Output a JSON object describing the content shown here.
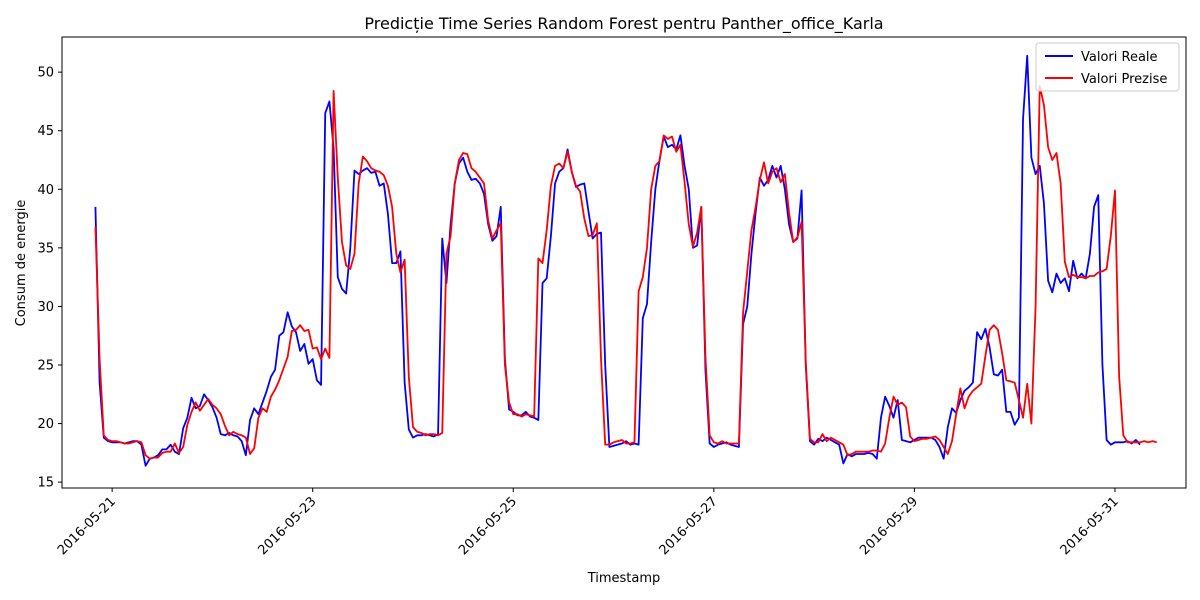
{
  "chart_data": {
    "type": "line",
    "title": "Predicție Time Series Random Forest pentru Panther_office_Karla",
    "xlabel": "Timestamp",
    "ylabel": "Consum de energie",
    "xlim": [
      "2016-05-20T12:00",
      "2016-05-31T17:00"
    ],
    "ylim": [
      14.5,
      53
    ],
    "x_ticks": [
      "2016-05-21",
      "2016-05-23",
      "2016-05-25",
      "2016-05-27",
      "2016-05-29",
      "2016-05-31"
    ],
    "y_ticks": [
      15,
      20,
      25,
      30,
      35,
      40,
      45,
      50
    ],
    "legend_position": "top-right",
    "x_start": "2016-05-20T20:00",
    "x_step_hours": 1,
    "series": [
      {
        "name": "Valori Reale",
        "color": "#0000ff",
        "values": [
          38.5,
          23.5,
          18.8,
          18.5,
          18.4,
          18.4,
          18.4,
          18.3,
          18.4,
          18.5,
          18.5,
          18.2,
          16.4,
          17.0,
          17.1,
          17.3,
          17.8,
          17.8,
          18.2,
          17.6,
          17.4,
          19.6,
          20.5,
          22.2,
          21.3,
          21.5,
          22.5,
          22.0,
          21.4,
          20.5,
          19.1,
          19.0,
          19.2,
          19.0,
          18.9,
          18.5,
          17.3,
          20.3,
          21.3,
          20.8,
          21.8,
          22.8,
          24.0,
          24.6,
          27.5,
          27.8,
          29.5,
          28.3,
          27.8,
          26.2,
          26.8,
          25.1,
          25.5,
          23.7,
          23.3,
          46.5,
          47.5,
          43.5,
          32.5,
          31.5,
          31.1,
          35.0,
          41.6,
          41.3,
          41.6,
          41.8,
          41.4,
          41.5,
          40.3,
          40.5,
          37.9,
          33.7,
          33.7,
          34.7,
          23.5,
          19.5,
          18.8,
          19.0,
          19.0,
          19.1,
          19.0,
          18.9,
          19.1,
          35.8,
          32.0,
          37.0,
          40.5,
          42.2,
          42.7,
          41.5,
          40.8,
          40.9,
          40.5,
          39.6,
          37.0,
          35.6,
          36.0,
          38.5,
          25.5,
          21.2,
          21.0,
          20.7,
          20.7,
          21.0,
          20.6,
          20.5,
          20.3,
          32.0,
          32.4,
          36.0,
          40.5,
          41.5,
          41.8,
          43.4,
          41.5,
          40.2,
          40.4,
          40.5,
          38.1,
          35.8,
          36.2,
          36.3,
          25.0,
          18.0,
          18.1,
          18.2,
          18.3,
          18.5,
          18.2,
          18.3,
          18.2,
          29.0,
          30.2,
          35.5,
          40.0,
          42.5,
          44.5,
          43.6,
          43.8,
          43.4,
          44.6,
          42.0,
          40.0,
          35.0,
          35.2,
          38.5,
          24.5,
          18.3,
          18.0,
          18.2,
          18.3,
          18.4,
          18.2,
          18.1,
          18.0,
          28.5,
          30.0,
          34.5,
          38.0,
          41.0,
          40.3,
          40.8,
          42.0,
          41.0,
          42.0,
          40.0,
          37.0,
          35.5,
          35.8,
          39.9,
          25.0,
          18.5,
          18.2,
          18.7,
          18.5,
          18.8,
          18.6,
          18.4,
          18.2,
          16.6,
          17.4,
          17.2,
          17.4,
          17.4,
          17.4,
          17.5,
          17.4,
          17.0,
          20.5,
          22.3,
          21.5,
          20.5,
          22.0,
          18.6,
          18.5,
          18.4,
          18.6,
          18.8,
          18.8,
          18.8,
          18.8,
          18.6,
          18.0,
          17.0,
          19.7,
          21.3,
          20.9,
          22.0,
          22.8,
          23.1,
          23.5,
          27.8,
          27.2,
          28.1,
          26.5,
          24.2,
          24.1,
          24.6,
          21.0,
          21.0,
          19.9,
          20.5,
          46.0,
          51.4,
          42.7,
          41.3,
          42.0,
          38.8,
          32.2,
          31.2,
          32.8,
          32.0,
          32.4,
          31.3,
          33.9,
          32.4,
          32.8,
          32.4,
          34.5,
          38.5,
          39.5,
          25.0,
          18.6,
          18.2,
          18.4,
          18.4,
          18.4,
          18.5,
          18.3,
          18.6,
          18.2
        ],
        "values_offset_hours": 0
      },
      {
        "name": "Valori Prezise",
        "color": "#ff0000",
        "values": [
          36.8,
          25.5,
          19.0,
          18.6,
          18.5,
          18.5,
          18.4,
          18.3,
          18.3,
          18.4,
          18.5,
          18.4,
          17.3,
          17.0,
          17.1,
          17.1,
          17.5,
          17.6,
          17.6,
          18.3,
          17.5,
          18.0,
          19.9,
          21.0,
          21.8,
          21.1,
          21.6,
          22.1,
          21.6,
          21.3,
          20.8,
          19.8,
          19.0,
          19.3,
          19.1,
          19.0,
          18.8,
          17.4,
          17.9,
          20.5,
          21.3,
          21.0,
          22.3,
          22.9,
          23.7,
          24.7,
          25.7,
          27.9,
          28.0,
          28.4,
          27.9,
          28.0,
          26.4,
          26.5,
          25.5,
          26.4,
          25.6,
          48.4,
          41.0,
          35.5,
          33.5,
          33.2,
          34.5,
          40.5,
          42.8,
          42.4,
          41.8,
          41.6,
          41.5,
          41.2,
          40.3,
          38.5,
          34.5,
          32.9,
          34.0,
          24.0,
          19.7,
          19.3,
          19.2,
          19.0,
          19.1,
          19.1,
          19.0,
          19.2,
          34.5,
          36.0,
          40.5,
          42.5,
          43.1,
          43.0,
          41.8,
          41.5,
          41.0,
          40.5,
          37.3,
          35.8,
          36.5,
          37.1,
          25.0,
          21.8,
          20.8,
          20.8,
          20.6,
          20.8,
          20.7,
          20.6,
          34.1,
          33.7,
          36.5,
          40.3,
          42.0,
          42.2,
          41.8,
          43.2,
          41.5,
          40.3,
          39.8,
          37.5,
          36.0,
          36.1,
          37.1,
          25.5,
          18.2,
          18.2,
          18.4,
          18.5,
          18.6,
          18.3,
          18.3,
          18.4,
          31.3,
          32.5,
          35.0,
          40.0,
          42.0,
          42.4,
          44.6,
          44.3,
          44.5,
          43.2,
          43.8,
          40.6,
          37.0,
          35.1,
          36.3,
          38.5,
          25.6,
          19.0,
          18.4,
          18.3,
          18.5,
          18.3,
          18.3,
          18.3,
          18.3,
          29.5,
          33.0,
          36.5,
          38.5,
          40.8,
          42.3,
          40.5,
          41.5,
          41.8,
          40.6,
          41.3,
          38.0,
          35.5,
          35.9,
          37.2,
          25.3,
          18.7,
          18.4,
          18.4,
          19.1,
          18.5,
          18.8,
          18.6,
          18.4,
          18.2,
          17.3,
          17.4,
          17.6,
          17.6,
          17.6,
          17.6,
          17.7,
          17.7,
          17.6,
          18.3,
          20.5,
          22.3,
          21.6,
          21.8,
          21.4,
          18.9,
          18.5,
          18.6,
          18.7,
          18.7,
          18.8,
          18.9,
          18.6,
          18.0,
          17.4,
          18.5,
          20.8,
          23.0,
          21.3,
          22.3,
          22.8,
          23.1,
          23.4,
          25.8,
          28.0,
          28.4,
          28.0,
          26.0,
          23.7,
          23.6,
          23.5,
          22.0,
          20.5,
          23.4,
          20.0,
          30.0,
          48.8,
          47.2,
          43.6,
          42.5,
          43.1,
          40.5,
          33.8,
          32.5,
          32.7,
          32.5,
          32.5,
          32.4,
          32.6,
          32.6,
          32.9,
          33.0,
          33.2,
          36.0,
          39.9,
          24.0,
          19.0,
          18.4,
          18.4,
          18.4,
          18.4,
          18.5,
          18.4,
          18.5,
          18.4
        ],
        "values_offset_hours": 0
      }
    ]
  }
}
